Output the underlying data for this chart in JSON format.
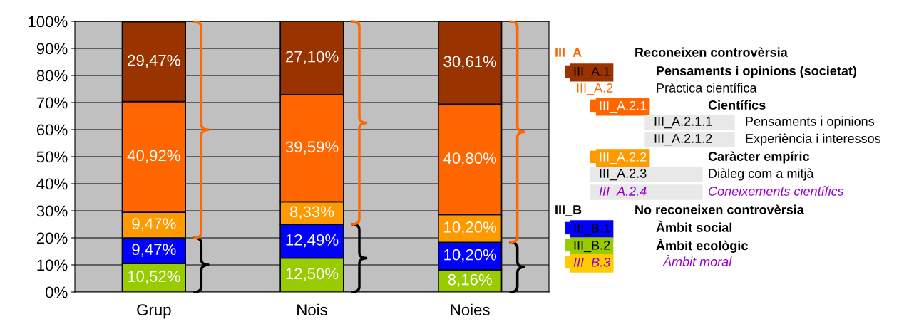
{
  "chart_data": {
    "type": "bar",
    "stacked": true,
    "categories": [
      "Grup",
      "Nois",
      "Noies"
    ],
    "series": [
      {
        "name": "III_B.2",
        "color": "#99cc00",
        "values": [
          10.52,
          12.5,
          8.16
        ],
        "value_labels": [
          "10,52%",
          "12,50%",
          "8,16%"
        ]
      },
      {
        "name": "III_B.1",
        "color": "#0000ff",
        "values": [
          9.47,
          12.49,
          10.2
        ],
        "value_labels": [
          "9,47%",
          "12,49%",
          "10,20%"
        ]
      },
      {
        "name": "III_A.2.2",
        "color": "#ff9900",
        "values": [
          9.47,
          8.33,
          10.2
        ],
        "value_labels": [
          "9,47%",
          "8,33%",
          "10,20%"
        ]
      },
      {
        "name": "III_A.2.1",
        "color": "#ff6600",
        "values": [
          40.92,
          39.59,
          40.8
        ],
        "value_labels": [
          "40,92%",
          "39,59%",
          "40,80%"
        ]
      },
      {
        "name": "III_A.1",
        "color": "#993300",
        "values": [
          29.47,
          27.1,
          30.61
        ],
        "value_labels": [
          "29,47%",
          "27,10%",
          "30,61%"
        ]
      },
      {
        "name": "III_B.3",
        "color": "#ffcc00",
        "values": [
          null,
          null,
          null
        ]
      }
    ],
    "ylim": [
      0,
      100
    ],
    "yticks": [
      {
        "value": 0,
        "label": "0%"
      },
      {
        "value": 10,
        "label": "10%"
      },
      {
        "value": 20,
        "label": "20%"
      },
      {
        "value": 30,
        "label": "30%"
      },
      {
        "value": 40,
        "label": "40%"
      },
      {
        "value": 50,
        "label": "50%"
      },
      {
        "value": 60,
        "label": "60%"
      },
      {
        "value": 70,
        "label": "70%"
      },
      {
        "value": 80,
        "label": "80%"
      },
      {
        "value": 90,
        "label": "90%"
      },
      {
        "value": 100,
        "label": "100%"
      }
    ],
    "grid": "y",
    "legend": "right",
    "annotations": [
      "III_A",
      "Reconeixen controvèrsia",
      "Pensaments i opinions (societat)",
      "III_A.2",
      "Pràctica científica",
      "Científics",
      "III_A.2.1.1",
      "Pensaments i opinions",
      "III_A.2.1.2",
      "Experiència i interessos",
      "Caràcter empíric",
      "III_A.2.3",
      "Diàleg com a mitjà",
      "III_A.2.4",
      "Coneixements científics",
      "III_B",
      "No reconeixen controvèrsia",
      "Àmbit social",
      "Àmbit ecològic",
      "Àmbit moral"
    ]
  }
}
